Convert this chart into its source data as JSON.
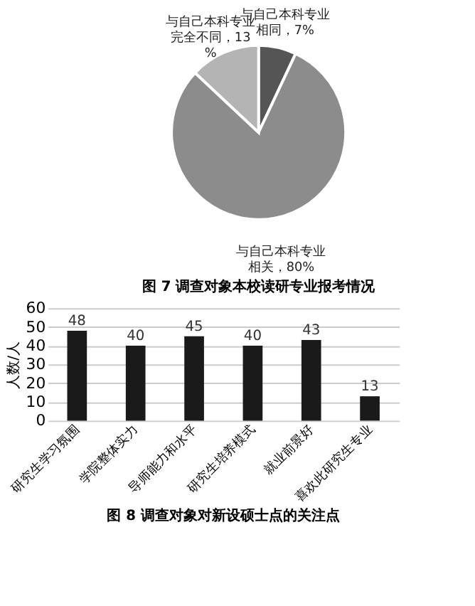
{
  "chart_data": [
    {
      "type": "pie",
      "title": "图 7  调查对象本校读研专业报考情况",
      "categories": [
        "与自己本科专业相同，7%",
        "与自己本科专业相关，80%",
        "与自己本科专业完全不同，13%"
      ],
      "values": [
        7,
        80,
        13
      ],
      "colors": [
        "#555555",
        "#8c8c8c",
        "#b4b4b4"
      ],
      "legend": false
    },
    {
      "type": "bar",
      "title": "图 8  调查对象对新设硕士点的关注点",
      "ylabel": "人数/人",
      "categories": [
        "研究生学习氛围",
        "学院整体实力",
        "导师能力和水平",
        "研究生培养模式",
        "就业前景好",
        "喜欢此研究生专业"
      ],
      "values": [
        48,
        40,
        45,
        40,
        43,
        13
      ],
      "color": "#1a1a1a",
      "ylim": [
        0,
        60
      ],
      "yticks": [
        0,
        10,
        20,
        30,
        40,
        50,
        60
      ],
      "grid": "y",
      "data_labels": true
    }
  ]
}
